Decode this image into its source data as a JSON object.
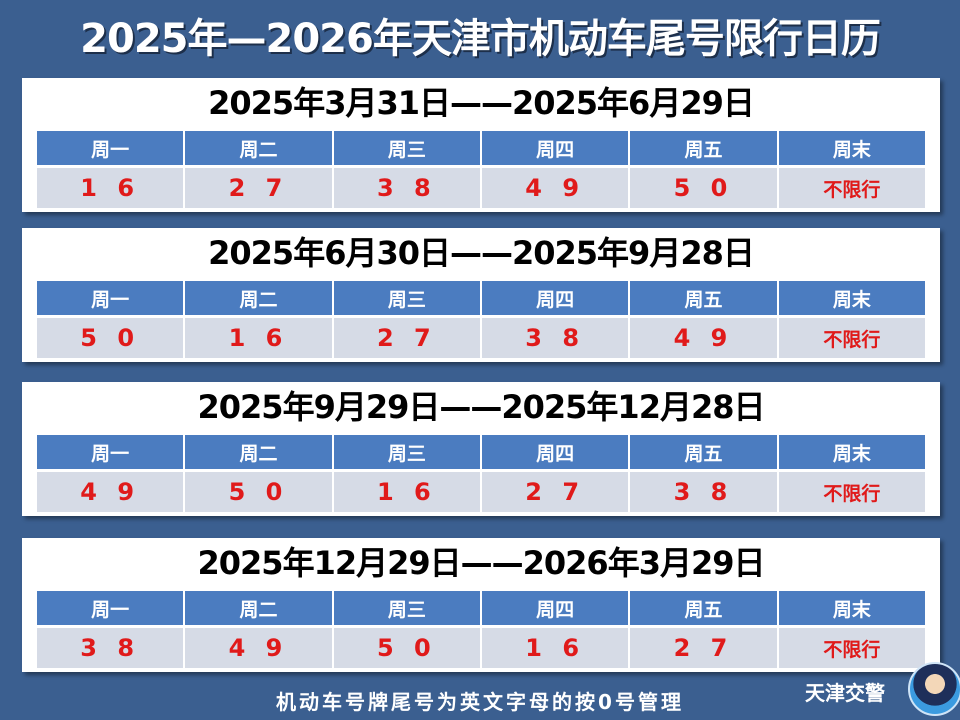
{
  "title": "2025年—2026年天津市机动车尾号限行日历",
  "headers": [
    "周一",
    "周二",
    "周三",
    "周四",
    "周五",
    "周末"
  ],
  "periods": [
    {
      "range": "2025年3月31日——2025年6月29日",
      "values": [
        "1 6",
        "2 7",
        "3 8",
        "4 9",
        "5 0",
        "不限行"
      ]
    },
    {
      "range": "2025年6月30日——2025年9月28日",
      "values": [
        "5 0",
        "1 6",
        "2 7",
        "3 8",
        "4 9",
        "不限行"
      ]
    },
    {
      "range": "2025年9月29日——2025年12月28日",
      "values": [
        "4 9",
        "5 0",
        "1 6",
        "2 7",
        "3 8",
        "不限行"
      ]
    },
    {
      "range": "2025年12月29日——2026年3月29日",
      "values": [
        "3 8",
        "4 9",
        "5 0",
        "1 6",
        "2 7",
        "不限行"
      ]
    }
  ],
  "footer": "机动车号牌尾号为英文字母的按0号管理",
  "brand": "天津交警",
  "colors": {
    "background": "#3b5f90",
    "header": "#4b7cc0",
    "restricted": "#e01a1a"
  }
}
